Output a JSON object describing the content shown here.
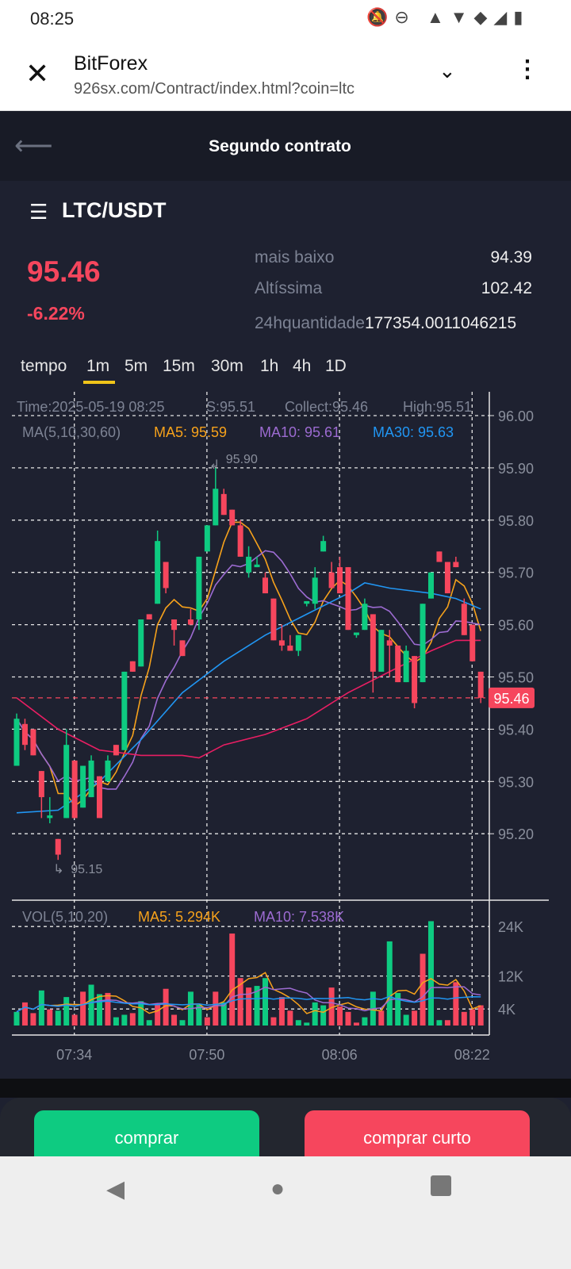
{
  "status_bar": {
    "time": "08:25",
    "icons": [
      "mute-icon",
      "dnd-icon",
      "volte-icon",
      "data-arrows-icon",
      "wifi-icon",
      "signal-icon",
      "battery-icon"
    ]
  },
  "browser": {
    "title": "BitForex",
    "url": "926sx.com/Contract/index.html?coin=ltc"
  },
  "app_header": {
    "title": "Segundo contrato"
  },
  "pair": {
    "name": "LTC/USDT",
    "price": "95.46",
    "change": "-6.22%"
  },
  "stats": [
    {
      "label": "mais baixo",
      "value": "94.39"
    },
    {
      "label": "Altíssima",
      "value": "102.42"
    },
    {
      "label": "24hquantidade",
      "value": "177354.0011046215"
    }
  ],
  "timeframes": {
    "label": "tempo",
    "items": [
      "1m",
      "5m",
      "15m",
      "30m",
      "1h",
      "4h",
      "1D"
    ],
    "active": "1m"
  },
  "info": {
    "time": "Time:2025-05-19 08:25",
    "s": "S:95.51",
    "collect": "Collect:95.46",
    "high": "High:95.51",
    "ma_label": "MA(5,10,30,60)",
    "ma5": "MA5: 95.59",
    "ma10": "MA10: 95.61",
    "ma30": "MA30: 95.63"
  },
  "vol_info": {
    "label": "VOL(5,10,20)",
    "ma5": "MA5: 5.294K",
    "ma10": "MA10: 7.538K"
  },
  "colors": {
    "up": "#0ecb81",
    "down": "#f6465d",
    "ma5": "#f7a21b",
    "ma10": "#9c6bd1",
    "ma30": "#2196f3",
    "ma60": "#e91e63",
    "bg": "#1e2130"
  },
  "chart_data": {
    "type": "candlestick",
    "y_ticks": [
      "96.00",
      "95.90",
      "95.80",
      "95.70",
      "95.60",
      "95.50",
      "95.40",
      "95.30",
      "95.20"
    ],
    "y_range": [
      95.2,
      96.0
    ],
    "x_ticks": [
      {
        "label": "07:34",
        "index": 6
      },
      {
        "label": "07:50",
        "index": 22
      },
      {
        "label": "08:06",
        "index": 38
      },
      {
        "label": "08:22",
        "index": 54
      }
    ],
    "last_price": "95.46",
    "high_marker": {
      "label": "95.90",
      "index": 24
    },
    "low_marker": {
      "label": "95.15",
      "index": 5
    },
    "ohlc": [
      [
        95.33,
        95.43,
        95.33,
        95.42
      ],
      [
        95.41,
        95.42,
        95.36,
        95.37
      ],
      [
        95.4,
        95.4,
        95.35,
        95.35
      ],
      [
        95.32,
        95.32,
        95.23,
        95.27
      ],
      [
        95.23,
        95.27,
        95.22,
        95.235
      ],
      [
        95.19,
        95.19,
        95.15,
        95.16
      ],
      [
        95.23,
        95.4,
        95.23,
        95.37
      ],
      [
        95.34,
        95.34,
        95.23,
        95.23
      ],
      [
        95.25,
        95.33,
        95.25,
        95.33
      ],
      [
        95.27,
        95.35,
        95.27,
        95.34
      ],
      [
        95.31,
        95.31,
        95.23,
        95.23
      ],
      [
        95.3,
        95.35,
        95.3,
        95.34
      ],
      [
        95.37,
        95.37,
        95.35,
        95.35
      ],
      [
        95.36,
        95.51,
        95.36,
        95.51
      ],
      [
        95.53,
        95.53,
        95.51,
        95.51
      ],
      [
        95.52,
        95.61,
        95.52,
        95.61
      ],
      [
        95.62,
        95.62,
        95.61,
        95.61
      ],
      [
        95.64,
        95.78,
        95.64,
        95.76
      ],
      [
        95.72,
        95.72,
        95.66,
        95.67
      ],
      [
        95.61,
        95.61,
        95.56,
        95.59
      ],
      [
        95.57,
        95.57,
        95.54,
        95.54
      ],
      [
        95.61,
        95.63,
        95.6,
        95.6
      ],
      [
        95.61,
        95.73,
        95.59,
        95.73
      ],
      [
        95.74,
        95.79,
        95.74,
        95.79
      ],
      [
        95.79,
        95.9,
        95.79,
        95.86
      ],
      [
        95.85,
        95.86,
        95.81,
        95.81
      ],
      [
        95.82,
        95.82,
        95.79,
        95.79
      ],
      [
        95.79,
        95.8,
        95.73,
        95.73
      ],
      [
        95.7,
        95.75,
        95.69,
        95.73
      ],
      [
        95.71,
        95.73,
        95.71,
        95.715
      ],
      [
        95.69,
        95.7,
        95.66,
        95.66
      ],
      [
        95.65,
        95.65,
        95.57,
        95.57
      ],
      [
        95.57,
        95.6,
        95.55,
        95.56
      ],
      [
        95.56,
        95.58,
        95.55,
        95.55
      ],
      [
        95.55,
        95.58,
        95.54,
        95.58
      ],
      [
        95.64,
        95.645,
        95.635,
        95.645
      ],
      [
        95.64,
        95.71,
        95.63,
        95.69
      ],
      [
        95.74,
        95.77,
        95.74,
        95.76
      ],
      [
        95.7,
        95.72,
        95.67,
        95.67
      ],
      [
        95.71,
        95.73,
        95.66,
        95.66
      ],
      [
        95.71,
        95.71,
        95.59,
        95.59
      ],
      [
        95.58,
        95.585,
        95.575,
        95.585
      ],
      [
        95.59,
        95.65,
        95.59,
        95.64
      ],
      [
        95.62,
        95.62,
        95.47,
        95.51
      ],
      [
        95.51,
        95.59,
        95.51,
        95.59
      ],
      [
        95.57,
        95.59,
        95.5,
        95.56
      ],
      [
        95.56,
        95.56,
        95.49,
        95.49
      ],
      [
        95.49,
        95.56,
        95.49,
        95.55
      ],
      [
        95.54,
        95.54,
        95.44,
        95.45
      ],
      [
        95.49,
        95.64,
        95.49,
        95.64
      ],
      [
        95.65,
        95.7,
        95.65,
        95.7
      ],
      [
        95.74,
        95.74,
        95.72,
        95.72
      ],
      [
        95.72,
        95.72,
        95.66,
        95.66
      ],
      [
        95.72,
        95.73,
        95.71,
        95.71
      ],
      [
        95.64,
        95.65,
        95.58,
        95.58
      ],
      [
        95.6,
        95.6,
        95.53,
        95.53
      ],
      [
        95.51,
        95.51,
        95.45,
        95.46
      ]
    ],
    "ma30": [
      [
        0,
        95.24
      ],
      [
        5,
        95.245
      ],
      [
        10,
        95.3
      ],
      [
        15,
        95.38
      ],
      [
        20,
        95.47
      ],
      [
        25,
        95.53
      ],
      [
        30,
        95.58
      ],
      [
        35,
        95.62
      ],
      [
        40,
        95.66
      ],
      [
        42,
        95.68
      ],
      [
        45,
        95.67
      ],
      [
        50,
        95.66
      ],
      [
        53,
        95.65
      ],
      [
        56,
        95.63
      ]
    ],
    "ma60": [
      [
        0,
        95.46
      ],
      [
        5,
        95.4
      ],
      [
        10,
        95.36
      ],
      [
        15,
        95.35
      ],
      [
        20,
        95.35
      ],
      [
        22,
        95.345
      ],
      [
        25,
        95.37
      ],
      [
        30,
        95.39
      ],
      [
        35,
        95.42
      ],
      [
        40,
        95.47
      ],
      [
        45,
        95.51
      ],
      [
        50,
        95.55
      ],
      [
        53,
        95.57
      ],
      [
        56,
        95.57
      ]
    ],
    "vol_ticks": [
      {
        "label": "24K",
        "value": 24
      },
      {
        "label": "12K",
        "value": 12
      },
      {
        "label": "4K",
        "value": 4
      }
    ],
    "volume_k": [
      3.3,
      5.6,
      3,
      8.5,
      3.9,
      3.6,
      6.9,
      2.6,
      8.2,
      9.9,
      7.6,
      7.9,
      2,
      2.6,
      3,
      5.9,
      1.3,
      5,
      8.9,
      2.6,
      1.3,
      8.2,
      5,
      2,
      8.2,
      5.6,
      22.3,
      11.5,
      9.2,
      9.6,
      11.5,
      2,
      6.9,
      3.6,
      1.3,
      0.7,
      5.6,
      4.9,
      9.2,
      4.6,
      3.3,
      0.7,
      2,
      8.2,
      3.6,
      20.4,
      7.9,
      2.6,
      3.6,
      17.4,
      25.3,
      1.3,
      1.3,
      10.5,
      3.3,
      3.9,
      4.9
    ],
    "volume_dir": "udduduudduuduuduuddduuudduddduuddduuuudddduuduuudduuddddd"
  },
  "buttons": {
    "buy": "comprar",
    "short": "comprar curto"
  }
}
